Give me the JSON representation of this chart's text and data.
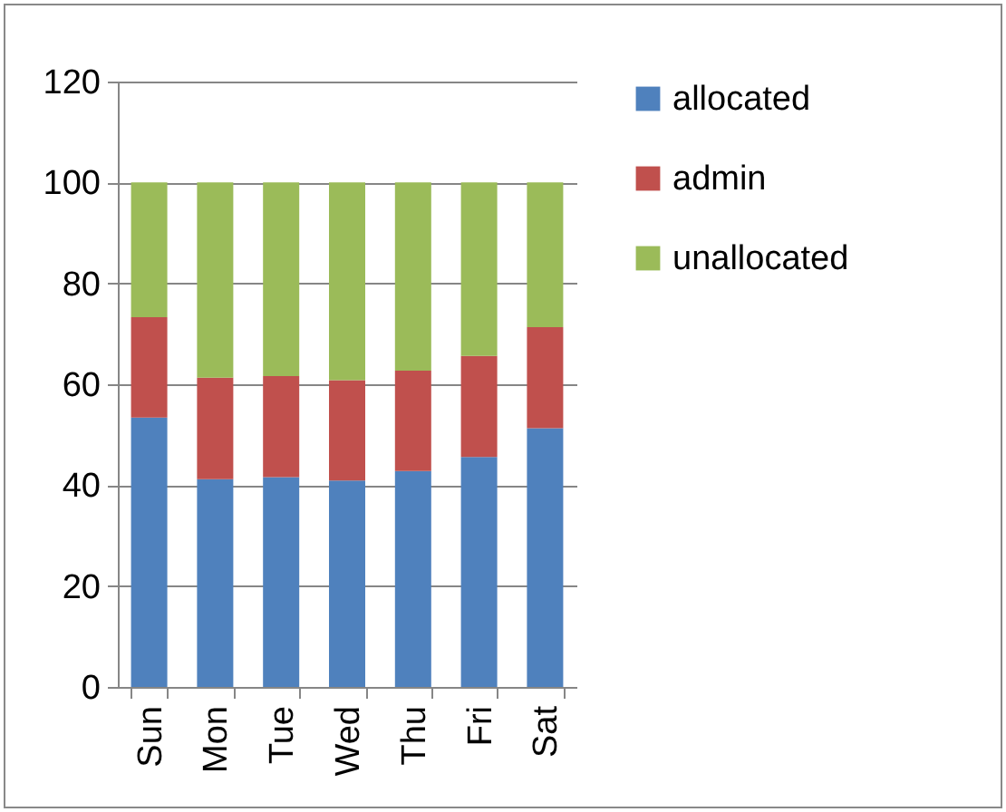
{
  "chart_data": {
    "type": "bar",
    "stacked": true,
    "categories": [
      "Sun",
      "Mon",
      "Tue",
      "Wed",
      "Thu",
      "Fri",
      "Sat"
    ],
    "series": [
      {
        "name": "allocated",
        "color": "#4f81bd",
        "values": [
          53.4,
          41.2,
          41.6,
          40.9,
          42.8,
          45.6,
          51.3
        ]
      },
      {
        "name": "admin",
        "color": "#c0504d",
        "values": [
          19.9,
          20.1,
          20.0,
          19.9,
          19.9,
          20.0,
          20.0
        ]
      },
      {
        "name": "unallocated",
        "color": "#9bbb59",
        "values": [
          26.7,
          38.7,
          38.4,
          39.2,
          37.3,
          34.4,
          28.7
        ]
      }
    ],
    "ylim": [
      0,
      120
    ],
    "yticks": [
      0,
      20,
      40,
      60,
      80,
      100,
      120
    ],
    "grid": "y",
    "legend": "right"
  }
}
